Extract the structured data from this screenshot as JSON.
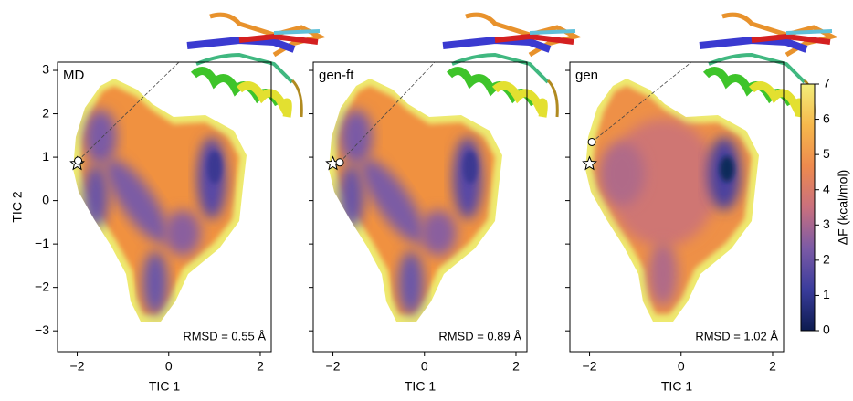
{
  "chart_data": [
    {
      "type": "scatter",
      "title": "MD",
      "xlabel": "TIC 1",
      "ylabel": "TIC 2",
      "annotation": "RMSD = 0.55 Å",
      "xlim": [
        -2.43,
        2.24
      ],
      "ylim": [
        -3.48,
        3.19
      ],
      "xticks": [
        {
          "value": -2,
          "label": "−2"
        },
        0,
        2
      ],
      "yticks": [
        {
          "value": -3,
          "label": "−3"
        },
        {
          "value": -2,
          "label": "−2"
        },
        {
          "value": -1,
          "label": "−1"
        },
        0,
        1,
        2,
        3
      ],
      "reference": {
        "x": [
          -2.0
        ],
        "y": [
          0.85
        ]
      },
      "sample": {
        "x": [
          -1.98
        ],
        "y": [
          0.92
        ]
      }
    },
    {
      "type": "scatter",
      "title": "gen-ft",
      "xlabel": "TIC 1",
      "annotation": "RMSD = 0.89 Å",
      "xlim": [
        -2.43,
        2.24
      ],
      "ylim": [
        -3.48,
        3.19
      ],
      "xticks": [
        {
          "value": -2,
          "label": "−2"
        },
        0,
        2
      ],
      "yticks": [
        -3,
        -2,
        -1,
        0,
        1,
        2,
        3
      ],
      "reference": {
        "x": [
          -2.0
        ],
        "y": [
          0.85
        ]
      },
      "sample": {
        "x": [
          -1.85
        ],
        "y": [
          0.88
        ]
      }
    },
    {
      "type": "scatter",
      "title": "gen",
      "xlabel": "TIC 1",
      "annotation": "RMSD = 1.02 Å",
      "xlim": [
        -2.43,
        2.24
      ],
      "ylim": [
        -3.48,
        3.19
      ],
      "xticks": [
        {
          "value": -2,
          "label": "−2"
        },
        0,
        2
      ],
      "yticks": [
        -3,
        -2,
        -1,
        0,
        1,
        2,
        3
      ],
      "reference": {
        "x": [
          -2.0
        ],
        "y": [
          0.85
        ]
      },
      "sample": {
        "x": [
          -1.95
        ],
        "y": [
          1.35
        ]
      }
    },
    {
      "type": "colorbar",
      "ylabel": "ΔF (kcal/mol)",
      "ylim": [
        0,
        7
      ],
      "yticks": [
        0,
        1,
        2,
        3,
        4,
        5,
        6,
        7
      ],
      "colors": [
        "#0d1b4f",
        "#3a3c9c",
        "#7b5aa6",
        "#c9707e",
        "#ee8a4e",
        "#f6b84c",
        "#f2ee7a"
      ]
    }
  ]
}
